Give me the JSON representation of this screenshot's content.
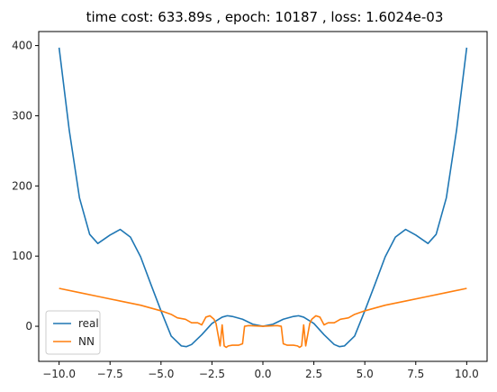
{
  "chart_data": {
    "type": "line",
    "title": "time cost: 633.89s  ,  epoch: 10187  ,  loss: 1.6024e-03",
    "xlabel": "",
    "ylabel": "",
    "xlim": [
      -11.0,
      11.0
    ],
    "ylim": [
      -50,
      420
    ],
    "xticks": [
      -10.0,
      -7.5,
      -5.0,
      -2.5,
      0.0,
      2.5,
      5.0,
      7.5,
      10.0
    ],
    "xtick_labels": [
      "−10.0",
      "−7.5",
      "−5.0",
      "−2.5",
      "0.0",
      "2.5",
      "5.0",
      "7.5",
      "10.0"
    ],
    "yticks": [
      0,
      100,
      200,
      300,
      400
    ],
    "ytick_labels": [
      "0",
      "100",
      "200",
      "300",
      "400"
    ],
    "grid": false,
    "legend_position": "lower-left",
    "series": [
      {
        "name": "real",
        "color": "#1f77b4",
        "x": [
          -10,
          -9.5,
          -9,
          -8.5,
          -8.1,
          -7.5,
          -7.0,
          -6.5,
          -6.0,
          -5.5,
          -5.0,
          -4.5,
          -4.0,
          -3.75,
          -3.5,
          -3.0,
          -2.5,
          -2.0,
          -1.75,
          -1.5,
          -1.0,
          -0.5,
          0,
          0.5,
          1.0,
          1.5,
          1.75,
          2.0,
          2.5,
          3.0,
          3.5,
          3.75,
          4.0,
          4.5,
          5.0,
          5.5,
          6.0,
          6.5,
          7.0,
          7.5,
          8.1,
          8.5,
          9,
          9.5,
          10
        ],
        "y": [
          397,
          279,
          183,
          131,
          118,
          130,
          138,
          127,
          99,
          60,
          22,
          -14,
          -28,
          -29,
          -26,
          -12,
          4,
          13,
          15,
          14,
          10,
          3,
          0,
          3,
          10,
          14,
          15,
          13,
          4,
          -12,
          -26,
          -29,
          -28,
          -14,
          22,
          60,
          99,
          127,
          138,
          130,
          118,
          131,
          183,
          279,
          397
        ]
      },
      {
        "name": "NN",
        "color": "#ff7f0e",
        "x": [
          -10,
          -9,
          -8,
          -7,
          -6,
          -5,
          -4.5,
          -4.2,
          -3.8,
          -3.5,
          -3.2,
          -3.0,
          -2.8,
          -2.6,
          -2.4,
          -2.3,
          -2.2,
          -2.1,
          -2.0,
          -1.9,
          -1.8,
          -1.7,
          -1.5,
          -1.2,
          -1.0,
          -0.9,
          -0.7,
          0,
          0.7,
          0.9,
          1.0,
          1.2,
          1.5,
          1.7,
          1.8,
          1.9,
          2.0,
          2.1,
          2.2,
          2.3,
          2.4,
          2.6,
          2.8,
          3.0,
          3.2,
          3.5,
          3.8,
          4.2,
          4.5,
          5,
          6,
          7,
          8,
          9,
          10
        ],
        "y": [
          54,
          48,
          42,
          36,
          30,
          22,
          17,
          12,
          10,
          5,
          5,
          2,
          13,
          15,
          10,
          4,
          -12,
          -28,
          2,
          -28,
          -30,
          -28,
          -27,
          -27,
          -25,
          0,
          1,
          0,
          1,
          0,
          -25,
          -27,
          -27,
          -28,
          -30,
          -28,
          2,
          -28,
          -12,
          4,
          10,
          15,
          13,
          2,
          5,
          5,
          10,
          12,
          17,
          22,
          30,
          36,
          42,
          48,
          54
        ]
      }
    ]
  }
}
